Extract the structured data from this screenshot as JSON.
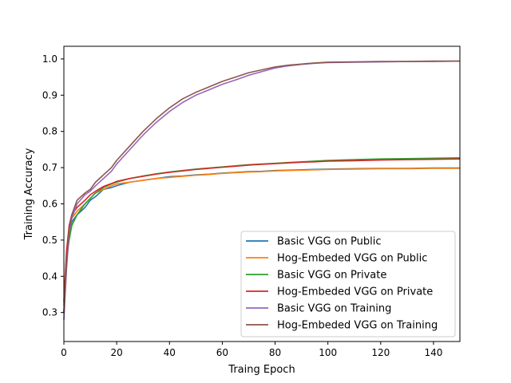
{
  "chart_data": {
    "type": "line",
    "title": "",
    "xlabel": "Traing Epoch",
    "ylabel": "Training Accuracy",
    "xlim": [
      0,
      150
    ],
    "ylim": [
      0.22,
      1.035
    ],
    "xticks": [
      0,
      20,
      40,
      60,
      80,
      100,
      120,
      140
    ],
    "yticks": [
      0.3,
      0.4,
      0.5,
      0.6,
      0.7,
      0.8,
      0.9,
      1.0
    ],
    "ytick_labels": [
      "0.3",
      "0.4",
      "0.5",
      "0.6",
      "0.7",
      "0.8",
      "0.9",
      "1.0"
    ],
    "grid": false,
    "legend_position": "lower-right",
    "epochs_x": [
      0,
      1,
      2,
      3,
      5,
      8,
      10,
      12,
      15,
      18,
      20,
      25,
      30,
      35,
      40,
      45,
      50,
      55,
      60,
      65,
      70,
      75,
      80,
      85,
      90,
      95,
      100,
      110,
      120,
      130,
      140,
      150
    ],
    "series": [
      {
        "name": "Basic VGG on Public",
        "color": "#1f77b4",
        "values": [
          0.3,
          0.44,
          0.52,
          0.55,
          0.57,
          0.59,
          0.61,
          0.62,
          0.64,
          0.645,
          0.65,
          0.66,
          0.665,
          0.67,
          0.675,
          0.677,
          0.68,
          0.682,
          0.685,
          0.687,
          0.689,
          0.69,
          0.692,
          0.693,
          0.694,
          0.695,
          0.696,
          0.697,
          0.698,
          0.698,
          0.699,
          0.699
        ]
      },
      {
        "name": "Hog-Embeded VGG on Public",
        "color": "#ff7f0e",
        "values": [
          0.32,
          0.46,
          0.53,
          0.56,
          0.58,
          0.6,
          0.615,
          0.63,
          0.64,
          0.65,
          0.655,
          0.66,
          0.665,
          0.67,
          0.673,
          0.676,
          0.679,
          0.681,
          0.684,
          0.686,
          0.688,
          0.689,
          0.691,
          0.692,
          0.693,
          0.694,
          0.695,
          0.696,
          0.697,
          0.697,
          0.698,
          0.698
        ]
      },
      {
        "name": "Basic VGG on Private",
        "color": "#2ca02c",
        "values": [
          0.3,
          0.45,
          0.5,
          0.54,
          0.57,
          0.6,
          0.615,
          0.63,
          0.645,
          0.655,
          0.66,
          0.67,
          0.677,
          0.683,
          0.688,
          0.692,
          0.696,
          0.699,
          0.702,
          0.705,
          0.708,
          0.71,
          0.712,
          0.714,
          0.716,
          0.718,
          0.72,
          0.722,
          0.724,
          0.725,
          0.726,
          0.727
        ]
      },
      {
        "name": "Hog-Embeded VGG on Private",
        "color": "#d62728",
        "values": [
          0.33,
          0.47,
          0.54,
          0.57,
          0.59,
          0.61,
          0.625,
          0.635,
          0.648,
          0.656,
          0.662,
          0.67,
          0.676,
          0.682,
          0.687,
          0.691,
          0.695,
          0.698,
          0.701,
          0.704,
          0.707,
          0.709,
          0.711,
          0.713,
          0.715,
          0.716,
          0.718,
          0.719,
          0.721,
          0.722,
          0.723,
          0.724
        ]
      },
      {
        "name": "Basic VGG on Training",
        "color": "#9467bd",
        "values": [
          0.28,
          0.42,
          0.52,
          0.56,
          0.6,
          0.625,
          0.635,
          0.65,
          0.67,
          0.69,
          0.71,
          0.75,
          0.79,
          0.825,
          0.855,
          0.88,
          0.9,
          0.915,
          0.93,
          0.942,
          0.955,
          0.965,
          0.975,
          0.981,
          0.985,
          0.988,
          0.99,
          0.991,
          0.992,
          0.993,
          0.993,
          0.994
        ]
      },
      {
        "name": "Hog-Embeded VGG on Training",
        "color": "#8c564b",
        "values": [
          0.3,
          0.44,
          0.53,
          0.57,
          0.61,
          0.63,
          0.64,
          0.66,
          0.68,
          0.7,
          0.72,
          0.76,
          0.8,
          0.835,
          0.865,
          0.89,
          0.908,
          0.923,
          0.938,
          0.95,
          0.962,
          0.97,
          0.978,
          0.983,
          0.986,
          0.989,
          0.991,
          0.992,
          0.993,
          0.993,
          0.994,
          0.994
        ]
      }
    ]
  }
}
